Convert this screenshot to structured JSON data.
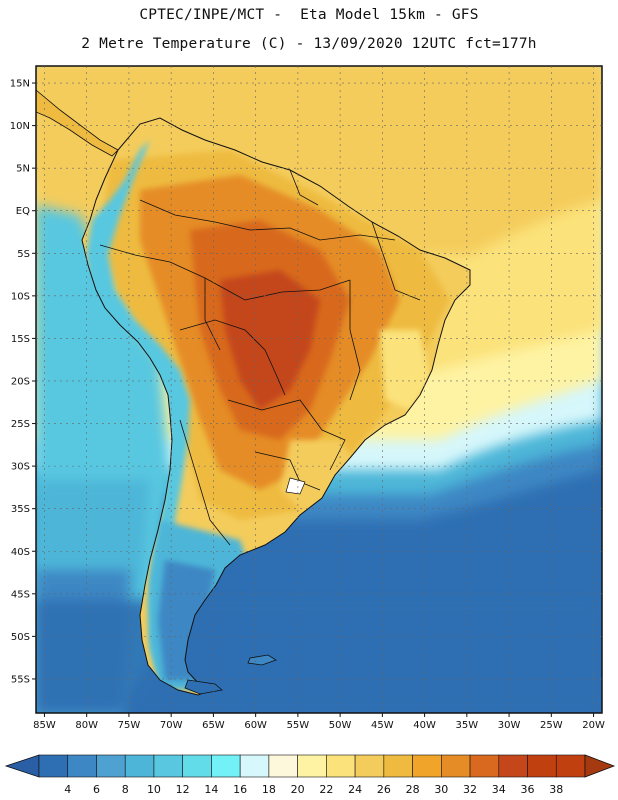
{
  "title": {
    "line1": "CPTEC/INPE/MCT -  Eta Model 15km - GFS",
    "line2": "2 Metre Temperature (C) - 13/09/2020 12UTC fct=177h"
  },
  "map": {
    "region": "South America",
    "lon_range": [
      -86,
      -19
    ],
    "lat_range": [
      -59,
      17
    ],
    "lat_labels": [
      "15N",
      "10N",
      "5N",
      "EQ",
      "5S",
      "10S",
      "15S",
      "20S",
      "25S",
      "30S",
      "35S",
      "40S",
      "45S",
      "50S",
      "55S"
    ],
    "lat_values": [
      15,
      10,
      5,
      0,
      -5,
      -10,
      -15,
      -20,
      -25,
      -30,
      -35,
      -40,
      -45,
      -50,
      -55
    ],
    "lon_labels": [
      "85W",
      "80W",
      "75W",
      "70W",
      "65W",
      "60W",
      "55W",
      "50W",
      "45W",
      "40W",
      "35W",
      "30W",
      "25W",
      "20W"
    ],
    "lon_values": [
      -85,
      -80,
      -75,
      -70,
      -65,
      -60,
      -55,
      -50,
      -45,
      -40,
      -35,
      -30,
      -25,
      -20
    ]
  },
  "colorbar": {
    "labels": [
      "4",
      "6",
      "8",
      "10",
      "12",
      "14",
      "16",
      "18",
      "20",
      "22",
      "24",
      "26",
      "28",
      "30",
      "32",
      "34",
      "36",
      "38"
    ],
    "colors": [
      "#2e6fb3",
      "#3d87c4",
      "#4ea1d1",
      "#4db6d8",
      "#59c7e0",
      "#63dcea",
      "#72f1f6",
      "#d6f7fb",
      "#fdf7dc",
      "#fef3a3",
      "#fbe27a",
      "#f4cc5b",
      "#eebb40",
      "#f0a52a",
      "#e58c26",
      "#d8691e",
      "#c4461a",
      "#c0400f",
      "#2a5fa6",
      "#a53a10"
    ]
  }
}
